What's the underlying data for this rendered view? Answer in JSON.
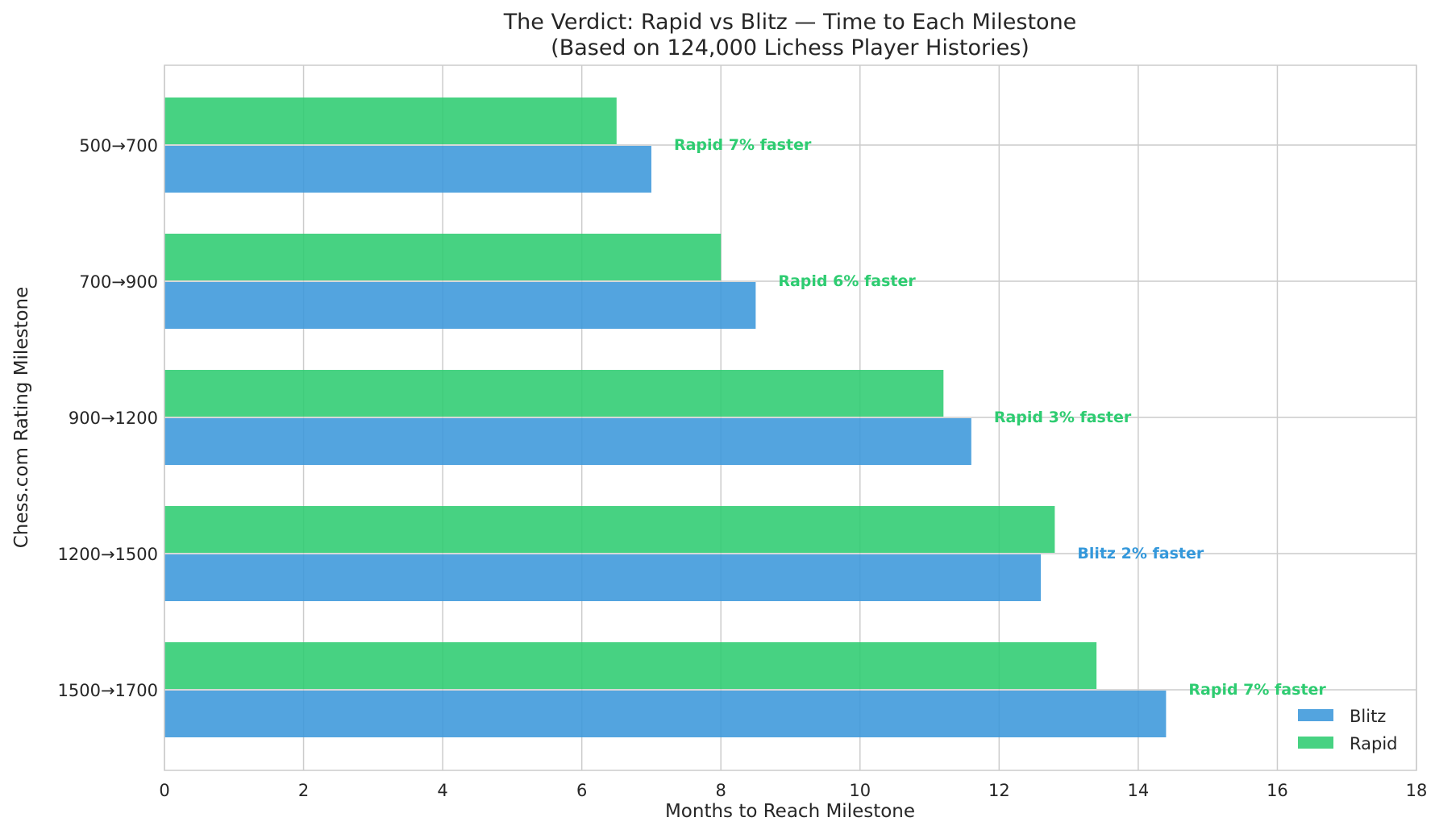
{
  "chart_data": {
    "type": "bar",
    "orientation": "horizontal",
    "title": "The Verdict: Rapid vs Blitz — Time to Each Milestone",
    "subtitle": "(Based on 124,000 Lichess Player Histories)",
    "xlabel": "Months to Reach Milestone",
    "ylabel": "Chess.com Rating Milestone",
    "xlim": [
      0,
      18
    ],
    "xticks": [
      0,
      2,
      4,
      6,
      8,
      10,
      12,
      14,
      16,
      18
    ],
    "grid": true,
    "legend_position": "bottom-right",
    "categories": [
      "500→700",
      "700→900",
      "900→1200",
      "1200→1500",
      "1500→1700"
    ],
    "series": [
      {
        "name": "Blitz",
        "color": "#3b97db",
        "values": [
          7.0,
          8.5,
          11.6,
          12.6,
          14.4
        ]
      },
      {
        "name": "Rapid",
        "color": "#2ecc71",
        "values": [
          6.5,
          8.0,
          11.2,
          12.8,
          13.4
        ]
      }
    ],
    "annotations": [
      {
        "text": "Rapid 7% faster",
        "color": "#2ecc71"
      },
      {
        "text": "Rapid 6% faster",
        "color": "#2ecc71"
      },
      {
        "text": "Rapid 3% faster",
        "color": "#2ecc71"
      },
      {
        "text": "Blitz 2% faster",
        "color": "#3498db"
      },
      {
        "text": "Rapid 7% faster",
        "color": "#2ecc71"
      }
    ]
  }
}
